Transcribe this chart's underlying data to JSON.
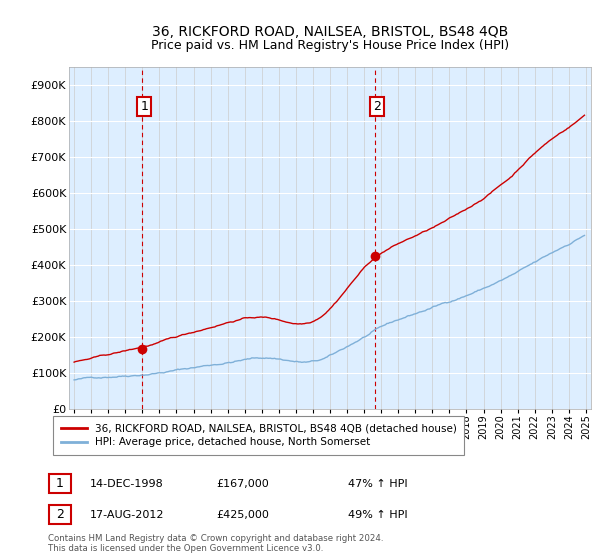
{
  "title": "36, RICKFORD ROAD, NAILSEA, BRISTOL, BS48 4QB",
  "subtitle": "Price paid vs. HM Land Registry's House Price Index (HPI)",
  "legend_line1": "36, RICKFORD ROAD, NAILSEA, BRISTOL, BS48 4QB (detached house)",
  "legend_line2": "HPI: Average price, detached house, North Somerset",
  "footnote": "Contains HM Land Registry data © Crown copyright and database right 2024.\nThis data is licensed under the Open Government Licence v3.0.",
  "sale1_label": "1",
  "sale1_date": "14-DEC-1998",
  "sale1_price": 167000,
  "sale1_hpi_pct": "47% ↑ HPI",
  "sale2_label": "2",
  "sale2_date": "17-AUG-2012",
  "sale2_price": 425000,
  "sale2_hpi_pct": "49% ↑ HPI",
  "sale1_year": 1998.958,
  "sale2_year": 2012.625,
  "red_color": "#cc0000",
  "blue_color": "#7fb0d8",
  "bg_color": "#ddeeff",
  "grid_color": "#cccccc",
  "ylim": [
    0,
    950000
  ],
  "xlim_start": 1994.7,
  "xlim_end": 2025.3,
  "yticks": [
    0,
    100000,
    200000,
    300000,
    400000,
    500000,
    600000,
    700000,
    800000,
    900000
  ]
}
